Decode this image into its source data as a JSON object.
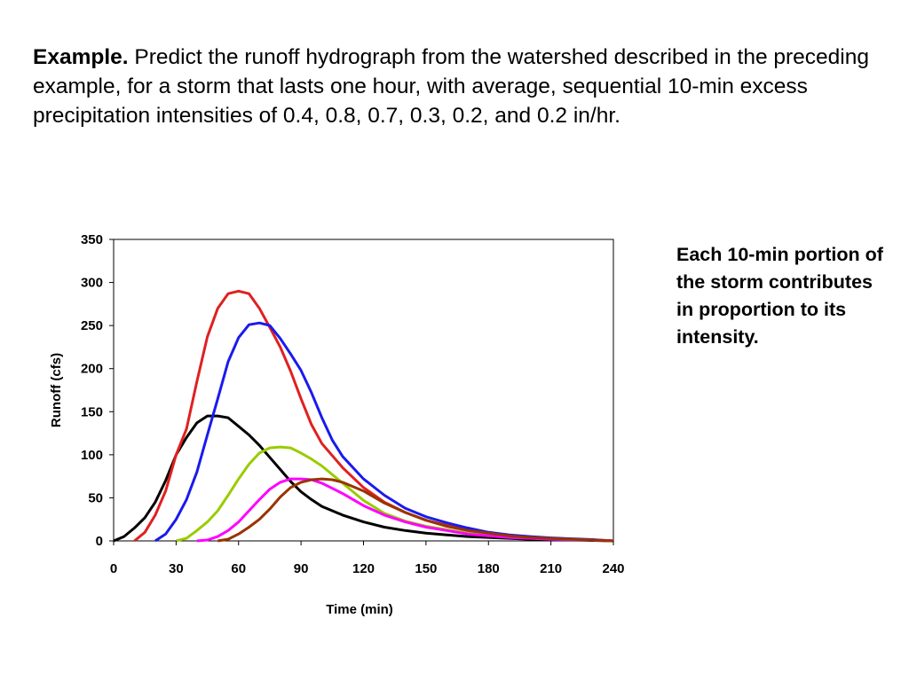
{
  "intro": {
    "bold_lead": "Example.",
    "text": "Predict the runoff hydrograph from the watershed described in the preceding example, for a storm that lasts one hour, with average, sequential 10-min excess precipitation intensities of 0.4, 0.8, 0.7, 0.3, 0.2, and 0.2 in/hr."
  },
  "note": "Each 10-min portion of the storm contributes in proportion to its intensity.",
  "chart_data": {
    "type": "line",
    "xlabel": "Time (min)",
    "ylabel": "Runoff (cfs)",
    "xlim": [
      0,
      240
    ],
    "ylim": [
      0,
      350
    ],
    "xticks": [
      0,
      30,
      60,
      90,
      120,
      150,
      180,
      210,
      240
    ],
    "yticks": [
      0,
      50,
      100,
      150,
      200,
      250,
      300,
      350
    ],
    "grid": false,
    "legend": "none",
    "series": [
      {
        "color": "#000000",
        "x": [
          0,
          5,
          10,
          15,
          20,
          25,
          30,
          35,
          40,
          45,
          50,
          55,
          60,
          65,
          70,
          75,
          80,
          85,
          90,
          95,
          100,
          105,
          110,
          120,
          130,
          140,
          150,
          160,
          170,
          180,
          190,
          200,
          210,
          220,
          230,
          240
        ],
        "y": [
          0,
          5,
          15,
          27,
          45,
          70,
          100,
          120,
          137,
          145,
          145,
          143,
          133,
          123,
          111,
          97,
          83,
          69,
          57,
          48,
          40,
          35,
          30,
          22,
          16,
          12,
          9,
          7,
          5,
          4,
          3,
          2,
          1.5,
          1,
          0.5,
          0
        ]
      },
      {
        "color": "#e02020",
        "x": [
          10,
          15,
          20,
          25,
          30,
          35,
          40,
          45,
          50,
          55,
          60,
          65,
          70,
          75,
          80,
          85,
          90,
          95,
          100,
          110,
          120,
          130,
          140,
          150,
          160,
          170,
          180,
          190,
          200,
          210,
          220,
          230,
          240
        ],
        "y": [
          0,
          10,
          30,
          58,
          100,
          130,
          185,
          237,
          270,
          287,
          290,
          287,
          270,
          248,
          225,
          197,
          165,
          135,
          113,
          85,
          62,
          45,
          33,
          24,
          18,
          13,
          9,
          6,
          4,
          3,
          2,
          1,
          0
        ]
      },
      {
        "color": "#1a1aee",
        "x": [
          20,
          25,
          30,
          35,
          40,
          45,
          50,
          55,
          60,
          65,
          70,
          75,
          80,
          85,
          90,
          95,
          100,
          105,
          110,
          120,
          130,
          140,
          150,
          160,
          170,
          180,
          190,
          200,
          210,
          220,
          230,
          240
        ],
        "y": [
          0,
          8,
          25,
          48,
          80,
          123,
          165,
          208,
          236,
          251,
          253,
          250,
          235,
          217,
          198,
          172,
          143,
          117,
          98,
          72,
          53,
          38,
          28,
          21,
          15,
          10,
          7,
          5,
          3.5,
          2.5,
          1.5,
          0
        ]
      },
      {
        "color": "#99cc00",
        "x": [
          30,
          35,
          40,
          45,
          50,
          55,
          60,
          65,
          70,
          75,
          80,
          85,
          90,
          95,
          100,
          105,
          110,
          120,
          130,
          140,
          150,
          160,
          170,
          180,
          190,
          200,
          210,
          220,
          230,
          240
        ],
        "y": [
          0,
          3,
          12,
          22,
          35,
          53,
          72,
          89,
          102,
          108,
          109,
          108,
          102,
          95,
          87,
          77,
          67,
          47,
          32,
          23,
          17,
          13,
          9,
          7,
          5,
          3.5,
          2.5,
          1.5,
          1,
          0
        ]
      },
      {
        "color": "#ff00ff",
        "x": [
          40,
          45,
          50,
          55,
          60,
          65,
          70,
          75,
          80,
          85,
          90,
          95,
          100,
          105,
          110,
          120,
          130,
          140,
          150,
          160,
          170,
          180,
          190,
          200,
          210,
          220,
          230,
          240
        ],
        "y": [
          0,
          1,
          5,
          12,
          22,
          35,
          48,
          60,
          68,
          72,
          72,
          71,
          67,
          61,
          55,
          41,
          30,
          22,
          16,
          12,
          8,
          6,
          4,
          3,
          2,
          1.5,
          1,
          0
        ]
      },
      {
        "color": "#993300",
        "x": [
          50,
          55,
          60,
          65,
          70,
          75,
          80,
          85,
          90,
          95,
          100,
          105,
          110,
          120,
          130,
          140,
          150,
          160,
          170,
          180,
          190,
          200,
          210,
          220,
          230,
          240
        ],
        "y": [
          0,
          2,
          8,
          16,
          25,
          37,
          51,
          62,
          68,
          71,
          72,
          71,
          68,
          58,
          44,
          33,
          24,
          17,
          12,
          9,
          6,
          4,
          3,
          2,
          1,
          0
        ]
      }
    ]
  }
}
